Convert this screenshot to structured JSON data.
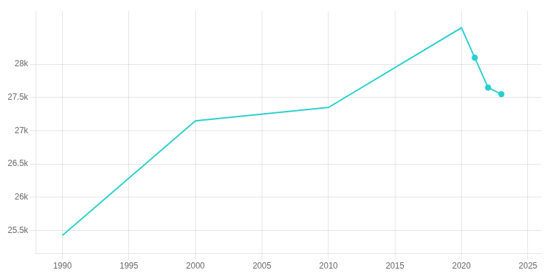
{
  "chart_data": {
    "type": "line",
    "x": [
      1990,
      2000,
      2010,
      2020,
      2021,
      2022,
      2023
    ],
    "series": [
      {
        "type": "line",
        "color": "#2acfcf",
        "marker": "none",
        "line_style": "solid",
        "values": [
          25425,
          27150,
          27350,
          28550,
          28100,
          27650,
          27550
        ]
      },
      {
        "type": "scatter",
        "color": "#2acfcf",
        "marker": "circle",
        "line_style": "none",
        "values": [
          null,
          null,
          null,
          null,
          28100,
          27650,
          27550
        ]
      }
    ],
    "xlim": [
      1988,
      2026
    ],
    "ylim": [
      25150,
      28800
    ],
    "xticks": [
      1990,
      1995,
      2000,
      2005,
      2010,
      2015,
      2020,
      2025
    ],
    "yticks": [
      {
        "value": 25500,
        "label": "25.5k"
      },
      {
        "value": 26000,
        "label": "26k"
      },
      {
        "value": 26500,
        "label": "26.5k"
      },
      {
        "value": 27000,
        "label": "27k"
      },
      {
        "value": 27500,
        "label": "27.5k"
      },
      {
        "value": 28000,
        "label": "28k"
      }
    ],
    "grid": true
  }
}
